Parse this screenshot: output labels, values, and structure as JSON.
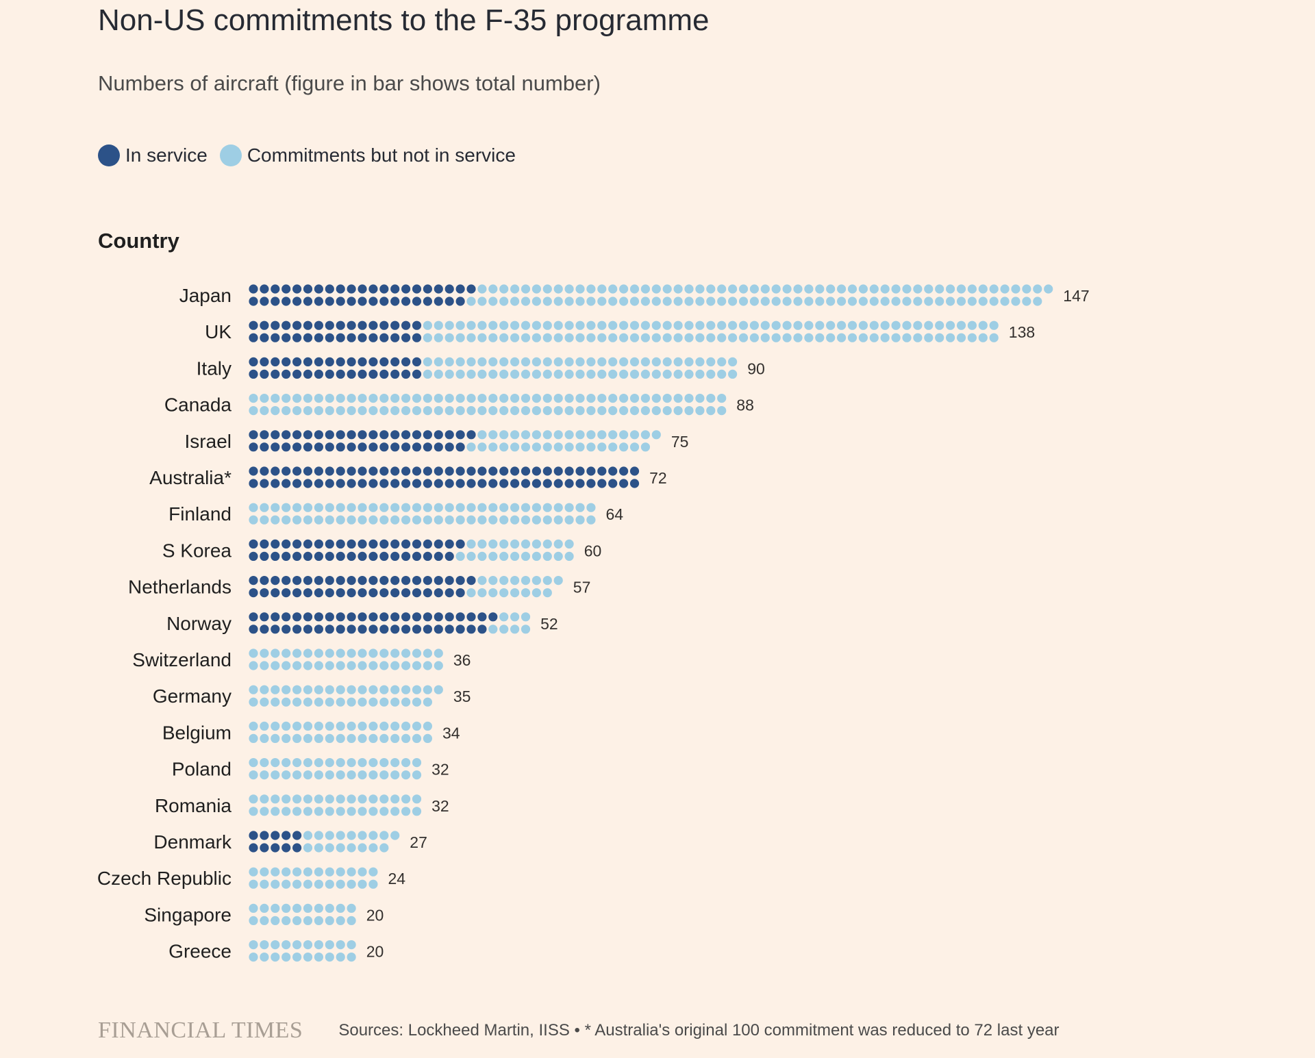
{
  "title": "Non-US commitments to the F-35 programme",
  "subtitle": "Numbers of aircraft (figure in bar shows total number)",
  "legend": {
    "in_service": "In service",
    "commitments": "Commitments but not in service"
  },
  "colors": {
    "in_service": "#2c5288",
    "commitments": "#9ecee4",
    "background": "#fdf1e6"
  },
  "column_header": "Country",
  "chart_data": {
    "type": "bar",
    "subtype": "stacked-dot-bar",
    "title": "Non-US commitments to the F-35 programme",
    "subtitle": "Numbers of aircraft (figure in bar shows total number)",
    "xlabel": "",
    "ylabel": "Country",
    "categories": [
      "Japan",
      "UK",
      "Italy",
      "Canada",
      "Israel",
      "Australia*",
      "Finland",
      "S Korea",
      "Netherlands",
      "Norway",
      "Switzerland",
      "Germany",
      "Belgium",
      "Poland",
      "Romania",
      "Denmark",
      "Czech Republic",
      "Singapore",
      "Greece"
    ],
    "series": [
      {
        "name": "In service",
        "values": [
          41,
          32,
          32,
          0,
          41,
          72,
          0,
          39,
          41,
          45,
          0,
          0,
          0,
          0,
          0,
          10,
          0,
          0,
          0
        ]
      },
      {
        "name": "Commitments but not in service",
        "values": [
          106,
          106,
          58,
          88,
          34,
          0,
          64,
          21,
          16,
          7,
          36,
          35,
          34,
          32,
          32,
          17,
          24,
          20,
          20
        ]
      }
    ],
    "totals": [
      "147",
      "138",
      "90",
      "88",
      "75",
      "72",
      "64",
      "60",
      "57",
      "52",
      "36",
      "35",
      "34",
      "32",
      "32",
      "27",
      "24",
      "20",
      "20"
    ]
  },
  "footer": {
    "logo": "FINANCIAL TIMES",
    "source": "Sources: Lockheed Martin, IISS • * Australia's original 100 commitment was reduced to 72 last year"
  }
}
